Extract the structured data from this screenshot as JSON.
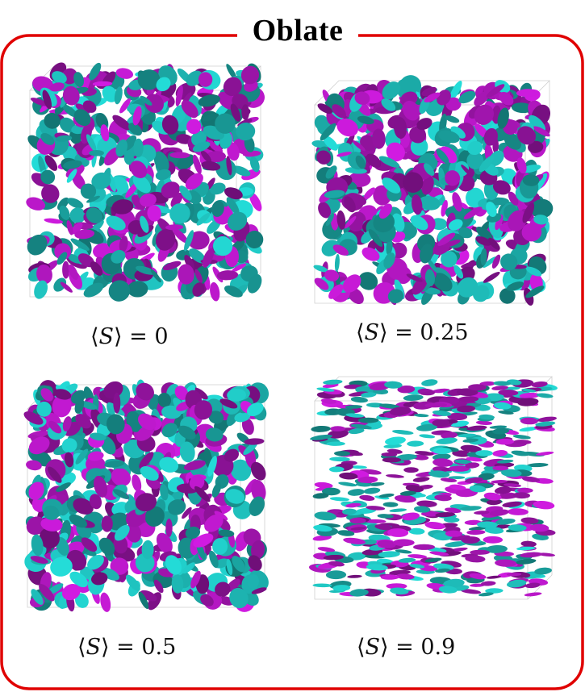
{
  "title": "Oblate",
  "colors": {
    "frame": "#e00000",
    "cyan": "#22d3cf",
    "magenta": "#c81ad8"
  },
  "panels": [
    {
      "label": "⟨S⟩ = 0",
      "s_value": "0",
      "order": 0.0
    },
    {
      "label": "⟨S⟩ = 0.25",
      "s_value": "0.25",
      "order": 0.25
    },
    {
      "label": "⟨S⟩ = 0.5",
      "s_value": "0.5",
      "order": 0.5
    },
    {
      "label": "⟨S⟩ = 0.9",
      "s_value": "0.9",
      "order": 0.9
    }
  ]
}
